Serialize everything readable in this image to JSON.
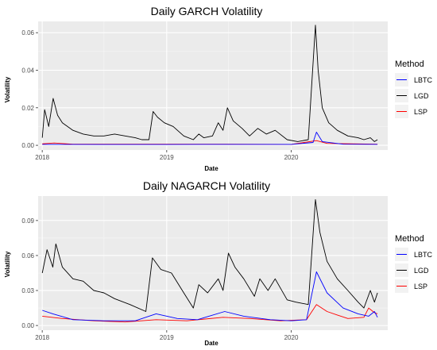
{
  "chart_data": [
    {
      "type": "line",
      "title": "Daily GARCH Volatility",
      "xlabel": "Date",
      "ylabel": "Volatility",
      "x_ticks": [
        "2018",
        "2019",
        "2020"
      ],
      "y_ticks": [
        "0.00",
        "0.02",
        "0.04",
        "0.06"
      ],
      "xlim": [
        "2017-12-20",
        "2020-10-10"
      ],
      "ylim": [
        -0.0025,
        0.066
      ],
      "legend": {
        "title": "Method",
        "placement": "right"
      },
      "series": [
        {
          "name": "LBTC",
          "color": "#0000ff",
          "points": [
            [
              "2018-01-01",
              0.0005
            ],
            [
              "2018-07-01",
              0.0004
            ],
            [
              "2019-01-01",
              0.0004
            ],
            [
              "2019-07-01",
              0.0005
            ],
            [
              "2020-01-01",
              0.0005
            ],
            [
              "2020-03-05",
              0.0015
            ],
            [
              "2020-03-15",
              0.007
            ],
            [
              "2020-04-01",
              0.002
            ],
            [
              "2020-06-01",
              0.0006
            ],
            [
              "2020-09-10",
              0.0005
            ]
          ]
        },
        {
          "name": "LGD",
          "color": "#000000",
          "points": [
            [
              "2018-01-01",
              0.004
            ],
            [
              "2018-01-08",
              0.019
            ],
            [
              "2018-01-20",
              0.01
            ],
            [
              "2018-02-02",
              0.025
            ],
            [
              "2018-02-15",
              0.016
            ],
            [
              "2018-03-01",
              0.012
            ],
            [
              "2018-04-01",
              0.008
            ],
            [
              "2018-05-01",
              0.006
            ],
            [
              "2018-06-01",
              0.005
            ],
            [
              "2018-07-01",
              0.005
            ],
            [
              "2018-08-01",
              0.006
            ],
            [
              "2018-09-01",
              0.005
            ],
            [
              "2018-10-01",
              0.004
            ],
            [
              "2018-10-20",
              0.003
            ],
            [
              "2018-11-10",
              0.003
            ],
            [
              "2018-11-22",
              0.018
            ],
            [
              "2018-12-05",
              0.015
            ],
            [
              "2018-12-25",
              0.012
            ],
            [
              "2019-01-20",
              0.01
            ],
            [
              "2019-02-20",
              0.005
            ],
            [
              "2019-03-20",
              0.003
            ],
            [
              "2019-04-05",
              0.006
            ],
            [
              "2019-04-20",
              0.004
            ],
            [
              "2019-05-15",
              0.005
            ],
            [
              "2019-06-01",
              0.012
            ],
            [
              "2019-06-15",
              0.008
            ],
            [
              "2019-06-28",
              0.02
            ],
            [
              "2019-07-15",
              0.013
            ],
            [
              "2019-08-10",
              0.009
            ],
            [
              "2019-09-01",
              0.005
            ],
            [
              "2019-09-25",
              0.009
            ],
            [
              "2019-10-20",
              0.006
            ],
            [
              "2019-11-15",
              0.008
            ],
            [
              "2019-12-20",
              0.003
            ],
            [
              "2020-01-20",
              0.002
            ],
            [
              "2020-02-20",
              0.003
            ],
            [
              "2020-03-12",
              0.064
            ],
            [
              "2020-03-20",
              0.04
            ],
            [
              "2020-04-01",
              0.02
            ],
            [
              "2020-04-20",
              0.012
            ],
            [
              "2020-05-15",
              0.008
            ],
            [
              "2020-06-15",
              0.005
            ],
            [
              "2020-07-15",
              0.004
            ],
            [
              "2020-08-01",
              0.003
            ],
            [
              "2020-08-20",
              0.004
            ],
            [
              "2020-09-01",
              0.002
            ],
            [
              "2020-09-10",
              0.003
            ]
          ]
        },
        {
          "name": "LSP",
          "color": "#ff0000",
          "points": [
            [
              "2018-01-01",
              0.0008
            ],
            [
              "2018-02-05",
              0.0012
            ],
            [
              "2018-04-01",
              0.0006
            ],
            [
              "2018-08-01",
              0.0006
            ],
            [
              "2019-01-01",
              0.0006
            ],
            [
              "2019-07-01",
              0.0006
            ],
            [
              "2020-01-01",
              0.0005
            ],
            [
              "2020-03-15",
              0.0025
            ],
            [
              "2020-04-15",
              0.001
            ],
            [
              "2020-09-10",
              0.0006
            ]
          ]
        }
      ]
    },
    {
      "type": "line",
      "title": "Daily NAGARCH Volatility",
      "xlabel": "Date",
      "ylabel": "Volatility",
      "x_ticks": [
        "2018",
        "2019",
        "2020"
      ],
      "y_ticks": [
        "0.00",
        "0.03",
        "0.06",
        "0.09"
      ],
      "xlim": [
        "2017-12-20",
        "2020-10-10"
      ],
      "ylim": [
        -0.004,
        0.111
      ],
      "legend": {
        "title": "Method",
        "placement": "right"
      },
      "series": [
        {
          "name": "LBTC",
          "color": "#0000ff",
          "points": [
            [
              "2018-01-01",
              0.013
            ],
            [
              "2018-02-01",
              0.01
            ],
            [
              "2018-04-01",
              0.005
            ],
            [
              "2018-07-01",
              0.004
            ],
            [
              "2018-10-01",
              0.004
            ],
            [
              "2018-12-01",
              0.01
            ],
            [
              "2019-02-01",
              0.006
            ],
            [
              "2019-04-01",
              0.005
            ],
            [
              "2019-06-20",
              0.012
            ],
            [
              "2019-08-15",
              0.008
            ],
            [
              "2019-11-01",
              0.005
            ],
            [
              "2020-01-01",
              0.004
            ],
            [
              "2020-02-15",
              0.005
            ],
            [
              "2020-03-15",
              0.046
            ],
            [
              "2020-04-15",
              0.028
            ],
            [
              "2020-06-01",
              0.015
            ],
            [
              "2020-07-15",
              0.01
            ],
            [
              "2020-08-15",
              0.008
            ],
            [
              "2020-09-01",
              0.012
            ],
            [
              "2020-09-10",
              0.007
            ]
          ]
        },
        {
          "name": "LGD",
          "color": "#000000",
          "points": [
            [
              "2018-01-01",
              0.045
            ],
            [
              "2018-01-15",
              0.065
            ],
            [
              "2018-02-01",
              0.05
            ],
            [
              "2018-02-10",
              0.07
            ],
            [
              "2018-03-01",
              0.05
            ],
            [
              "2018-04-01",
              0.04
            ],
            [
              "2018-05-01",
              0.038
            ],
            [
              "2018-06-01",
              0.03
            ],
            [
              "2018-07-01",
              0.028
            ],
            [
              "2018-08-01",
              0.023
            ],
            [
              "2018-09-15",
              0.018
            ],
            [
              "2018-11-01",
              0.012
            ],
            [
              "2018-11-20",
              0.058
            ],
            [
              "2018-12-15",
              0.048
            ],
            [
              "2019-01-15",
              0.045
            ],
            [
              "2019-02-20",
              0.028
            ],
            [
              "2019-03-20",
              0.015
            ],
            [
              "2019-04-05",
              0.035
            ],
            [
              "2019-05-01",
              0.028
            ],
            [
              "2019-06-01",
              0.04
            ],
            [
              "2019-06-15",
              0.03
            ],
            [
              "2019-07-01",
              0.062
            ],
            [
              "2019-07-20",
              0.05
            ],
            [
              "2019-08-15",
              0.04
            ],
            [
              "2019-09-15",
              0.025
            ],
            [
              "2019-10-01",
              0.04
            ],
            [
              "2019-10-25",
              0.03
            ],
            [
              "2019-11-15",
              0.04
            ],
            [
              "2019-12-20",
              0.022
            ],
            [
              "2020-01-15",
              0.02
            ],
            [
              "2020-02-20",
              0.018
            ],
            [
              "2020-03-12",
              0.108
            ],
            [
              "2020-03-25",
              0.08
            ],
            [
              "2020-04-15",
              0.055
            ],
            [
              "2020-05-15",
              0.04
            ],
            [
              "2020-06-15",
              0.03
            ],
            [
              "2020-07-15",
              0.02
            ],
            [
              "2020-08-01",
              0.015
            ],
            [
              "2020-08-20",
              0.03
            ],
            [
              "2020-09-01",
              0.02
            ],
            [
              "2020-09-10",
              0.028
            ]
          ]
        },
        {
          "name": "LSP",
          "color": "#ff0000",
          "points": [
            [
              "2018-01-01",
              0.008
            ],
            [
              "2018-03-01",
              0.006
            ],
            [
              "2018-06-01",
              0.004
            ],
            [
              "2018-09-01",
              0.003
            ],
            [
              "2018-12-01",
              0.005
            ],
            [
              "2019-03-01",
              0.004
            ],
            [
              "2019-06-15",
              0.007
            ],
            [
              "2019-09-01",
              0.006
            ],
            [
              "2019-12-01",
              0.004
            ],
            [
              "2020-02-15",
              0.005
            ],
            [
              "2020-03-15",
              0.018
            ],
            [
              "2020-04-15",
              0.012
            ],
            [
              "2020-05-15",
              0.009
            ],
            [
              "2020-06-15",
              0.006
            ],
            [
              "2020-08-01",
              0.007
            ],
            [
              "2020-08-15",
              0.015
            ],
            [
              "2020-09-01",
              0.011
            ],
            [
              "2020-09-10",
              0.01
            ]
          ]
        }
      ]
    }
  ]
}
